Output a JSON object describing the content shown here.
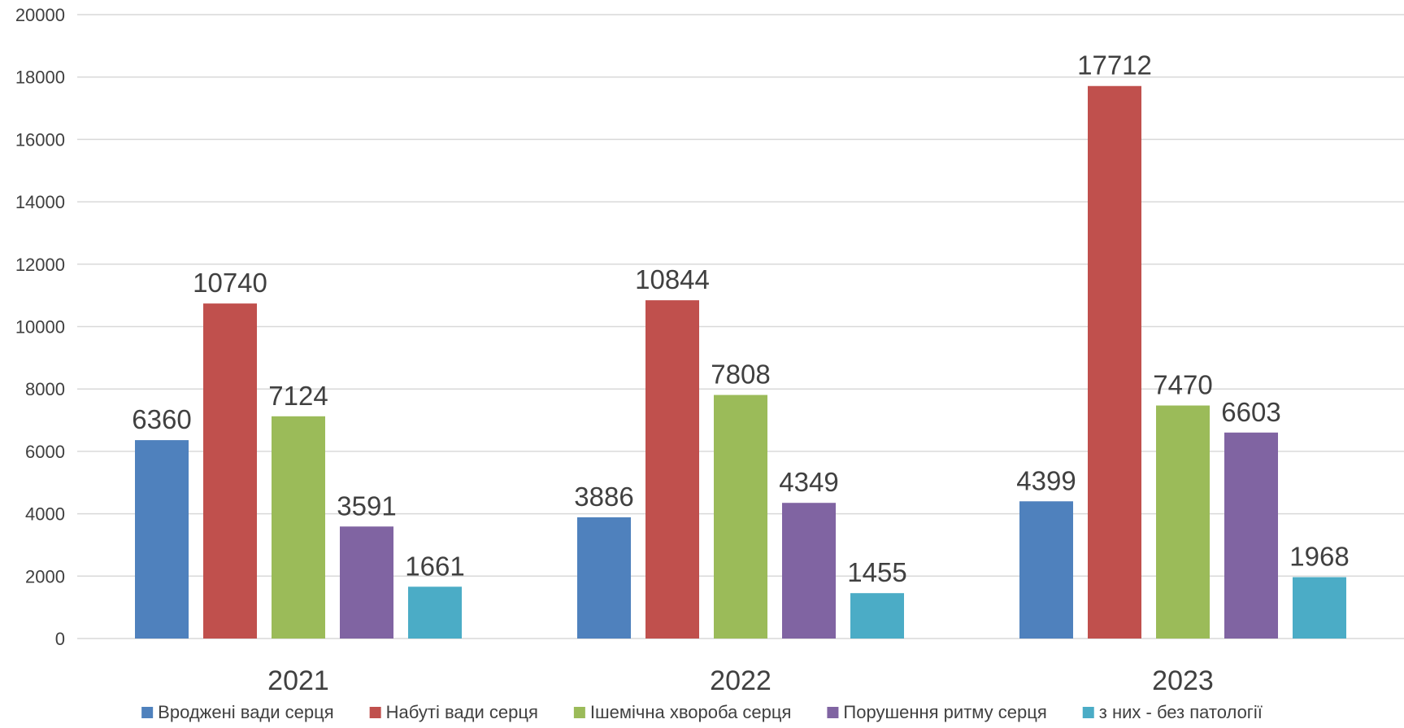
{
  "chart_data": {
    "type": "bar",
    "title": "",
    "xlabel": "",
    "ylabel": "",
    "categories": [
      "2021",
      "2022",
      "2023"
    ],
    "ylim": [
      0,
      20000
    ],
    "yticks": [
      0,
      2000,
      4000,
      6000,
      8000,
      10000,
      12000,
      14000,
      16000,
      18000,
      20000
    ],
    "grid": true,
    "legend_position": "bottom",
    "series": [
      {
        "name": "Вроджені вади серця",
        "color": "#4F81BD",
        "values": [
          6360,
          3886,
          4399
        ]
      },
      {
        "name": "Набуті вади серця",
        "color": "#C0504D",
        "values": [
          10740,
          10844,
          17712
        ]
      },
      {
        "name": "Ішемічна хвороба серця",
        "color": "#9BBB59",
        "values": [
          7124,
          7808,
          7470
        ]
      },
      {
        "name": "Порушення ритму серця",
        "color": "#8064A2",
        "values": [
          3591,
          4349,
          6603
        ]
      },
      {
        "name": "з них - без патології",
        "color": "#4BACC6",
        "values": [
          1661,
          1455,
          1968
        ]
      }
    ]
  }
}
